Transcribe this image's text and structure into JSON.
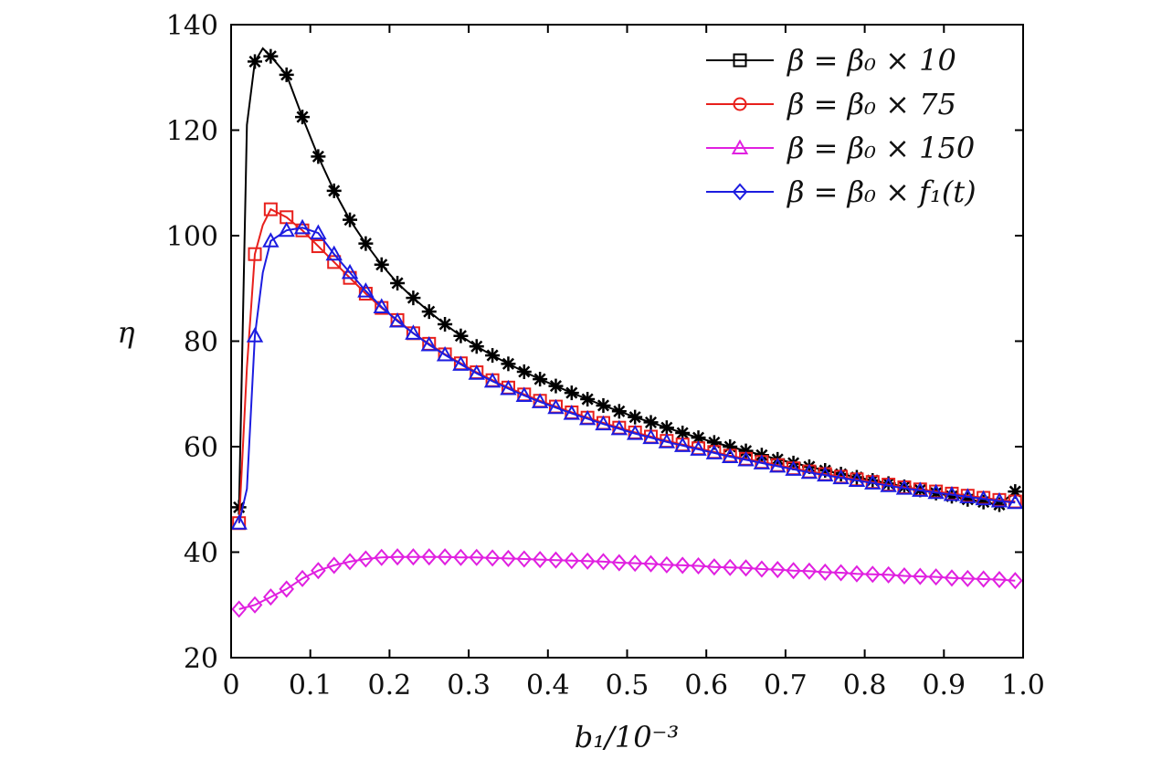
{
  "chart_data": {
    "type": "line",
    "title": "",
    "xlabel": "b₁/10⁻³",
    "ylabel": "η",
    "xlim": [
      0,
      1.0
    ],
    "ylim": [
      20,
      140
    ],
    "xticks": [
      "0",
      "0.1",
      "0.2",
      "0.3",
      "0.4",
      "0.5",
      "0.6",
      "0.7",
      "0.8",
      "0.9",
      "1.0"
    ],
    "yticks": [
      "20",
      "40",
      "60",
      "80",
      "100",
      "120",
      "140"
    ],
    "grid": false,
    "legend_position": "top-right",
    "legend": [
      {
        "label": "β = β₀ × 10",
        "color": "#000000",
        "marker": "square"
      },
      {
        "label": "β = β₀ × 75",
        "color": "#e8201c",
        "marker": "circle"
      },
      {
        "label": "β = β₀ × 150",
        "color": "#e020e0",
        "marker": "triangle"
      },
      {
        "label": "β = β₀ × f₁(t)",
        "color": "#1c1ce0",
        "marker": "diamond"
      }
    ],
    "series": [
      {
        "name": "black-star-series",
        "color": "#000000",
        "marker": "asterisk",
        "x": [
          0.01,
          0.02,
          0.03,
          0.04,
          0.05,
          0.07,
          0.09,
          0.11,
          0.13,
          0.15,
          0.17,
          0.19,
          0.21,
          0.23,
          0.25,
          0.27,
          0.29,
          0.31,
          0.33,
          0.35,
          0.37,
          0.39,
          0.41,
          0.43,
          0.45,
          0.47,
          0.49,
          0.51,
          0.53,
          0.55,
          0.57,
          0.59,
          0.61,
          0.63,
          0.65,
          0.67,
          0.69,
          0.71,
          0.73,
          0.75,
          0.77,
          0.79,
          0.81,
          0.83,
          0.85,
          0.87,
          0.89,
          0.91,
          0.93,
          0.95,
          0.97,
          0.99
        ],
        "y": [
          48.5,
          121,
          133,
          135.5,
          134,
          130.5,
          122.5,
          115,
          108.5,
          103,
          98.5,
          94.5,
          91,
          88.2,
          85.6,
          83.2,
          81,
          79,
          77.3,
          75.7,
          74.2,
          72.8,
          71.5,
          70.2,
          69,
          67.8,
          66.7,
          65.6,
          64.6,
          63.6,
          62.6,
          61.7,
          60.8,
          60,
          59.2,
          58.4,
          57.6,
          56.9,
          56.2,
          55.5,
          54.8,
          54.2,
          53.6,
          53,
          52.4,
          51.8,
          51.2,
          50.6,
          50,
          49.5,
          49,
          51.5
        ],
        "marker_x": [
          0.01,
          0.03,
          0.05,
          0.07,
          0.09,
          0.11,
          0.13,
          0.15,
          0.17,
          0.19,
          0.21,
          0.23,
          0.25,
          0.27,
          0.29,
          0.31,
          0.33,
          0.35,
          0.37,
          0.39,
          0.41,
          0.43,
          0.45,
          0.47,
          0.49,
          0.51,
          0.53,
          0.55,
          0.57,
          0.59,
          0.61,
          0.63,
          0.65,
          0.67,
          0.69,
          0.71,
          0.73,
          0.75,
          0.77,
          0.79,
          0.81,
          0.83,
          0.85,
          0.87,
          0.89,
          0.91,
          0.93,
          0.95,
          0.97,
          0.99
        ]
      },
      {
        "name": "red-square-series",
        "color": "#e8201c",
        "marker": "square",
        "x": [
          0.01,
          0.02,
          0.03,
          0.04,
          0.05,
          0.07,
          0.09,
          0.11,
          0.13,
          0.15,
          0.17,
          0.19,
          0.21,
          0.23,
          0.25,
          0.27,
          0.29,
          0.31,
          0.33,
          0.35,
          0.37,
          0.39,
          0.41,
          0.43,
          0.45,
          0.47,
          0.49,
          0.51,
          0.53,
          0.55,
          0.57,
          0.59,
          0.61,
          0.63,
          0.65,
          0.67,
          0.69,
          0.71,
          0.73,
          0.75,
          0.77,
          0.79,
          0.81,
          0.83,
          0.85,
          0.87,
          0.89,
          0.91,
          0.93,
          0.95,
          0.97,
          0.99
        ],
        "y": [
          45.5,
          75,
          96.5,
          102,
          105,
          103.5,
          101,
          98,
          95,
          92,
          89,
          86.3,
          84,
          81.5,
          79.5,
          77.5,
          75.8,
          74.1,
          72.6,
          71.2,
          69.9,
          68.7,
          67.6,
          66.5,
          65.5,
          64.5,
          63.6,
          62.7,
          61.9,
          61.1,
          60.4,
          59.7,
          59,
          58.3,
          57.7,
          57.1,
          56.5,
          55.9,
          55.3,
          54.8,
          54.3,
          53.8,
          53.3,
          52.8,
          52.3,
          51.9,
          51.5,
          51.1,
          50.7,
          50.3,
          49.9,
          49.6
        ],
        "marker_x": [
          0.01,
          0.03,
          0.05,
          0.07,
          0.09,
          0.11,
          0.13,
          0.15,
          0.17,
          0.19,
          0.21,
          0.23,
          0.25,
          0.27,
          0.29,
          0.31,
          0.33,
          0.35,
          0.37,
          0.39,
          0.41,
          0.43,
          0.45,
          0.47,
          0.49,
          0.51,
          0.53,
          0.55,
          0.57,
          0.59,
          0.61,
          0.63,
          0.65,
          0.67,
          0.69,
          0.71,
          0.73,
          0.75,
          0.77,
          0.79,
          0.81,
          0.83,
          0.85,
          0.87,
          0.89,
          0.91,
          0.93,
          0.95,
          0.97,
          0.99
        ]
      },
      {
        "name": "magenta-diamond-series",
        "color": "#e020e0",
        "marker": "diamond",
        "x": [
          0.01,
          0.03,
          0.05,
          0.07,
          0.09,
          0.11,
          0.13,
          0.15,
          0.17,
          0.19,
          0.21,
          0.23,
          0.25,
          0.27,
          0.29,
          0.31,
          0.33,
          0.35,
          0.37,
          0.39,
          0.41,
          0.43,
          0.45,
          0.47,
          0.49,
          0.51,
          0.53,
          0.55,
          0.57,
          0.59,
          0.61,
          0.63,
          0.65,
          0.67,
          0.69,
          0.71,
          0.73,
          0.75,
          0.77,
          0.79,
          0.81,
          0.83,
          0.85,
          0.87,
          0.89,
          0.91,
          0.93,
          0.95,
          0.97,
          0.99
        ],
        "y": [
          29.2,
          30,
          31.5,
          33,
          35,
          36.5,
          37.5,
          38.2,
          38.7,
          39,
          39.1,
          39.1,
          39.1,
          39.1,
          39,
          39,
          38.9,
          38.8,
          38.7,
          38.6,
          38.5,
          38.4,
          38.3,
          38.2,
          38,
          37.9,
          37.8,
          37.6,
          37.5,
          37.4,
          37.2,
          37.1,
          37,
          36.8,
          36.7,
          36.5,
          36.4,
          36.2,
          36.1,
          35.9,
          35.8,
          35.7,
          35.5,
          35.4,
          35.3,
          35.1,
          35,
          34.9,
          34.8,
          34.6
        ],
        "marker_x": [
          0.01,
          0.03,
          0.05,
          0.07,
          0.09,
          0.11,
          0.13,
          0.15,
          0.17,
          0.19,
          0.21,
          0.23,
          0.25,
          0.27,
          0.29,
          0.31,
          0.33,
          0.35,
          0.37,
          0.39,
          0.41,
          0.43,
          0.45,
          0.47,
          0.49,
          0.51,
          0.53,
          0.55,
          0.57,
          0.59,
          0.61,
          0.63,
          0.65,
          0.67,
          0.69,
          0.71,
          0.73,
          0.75,
          0.77,
          0.79,
          0.81,
          0.83,
          0.85,
          0.87,
          0.89,
          0.91,
          0.93,
          0.95,
          0.97,
          0.99
        ]
      },
      {
        "name": "blue-triangle-series",
        "color": "#1c1ce0",
        "marker": "triangle",
        "x": [
          0.01,
          0.02,
          0.03,
          0.04,
          0.05,
          0.07,
          0.09,
          0.11,
          0.13,
          0.15,
          0.17,
          0.19,
          0.21,
          0.23,
          0.25,
          0.27,
          0.29,
          0.31,
          0.33,
          0.35,
          0.37,
          0.39,
          0.41,
          0.43,
          0.45,
          0.47,
          0.49,
          0.51,
          0.53,
          0.55,
          0.57,
          0.59,
          0.61,
          0.63,
          0.65,
          0.67,
          0.69,
          0.71,
          0.73,
          0.75,
          0.77,
          0.79,
          0.81,
          0.83,
          0.85,
          0.87,
          0.89,
          0.91,
          0.93,
          0.95,
          0.97,
          0.99
        ],
        "y": [
          45.5,
          52,
          81,
          93,
          99,
          101,
          101.5,
          100.5,
          96.5,
          93,
          89.5,
          86.5,
          83.8,
          81.5,
          79.3,
          77.4,
          75.6,
          73.9,
          72.4,
          71,
          69.7,
          68.5,
          67.4,
          66.3,
          65.3,
          64.3,
          63.4,
          62.5,
          61.7,
          60.9,
          60.2,
          59.5,
          58.8,
          58.1,
          57.5,
          56.9,
          56.3,
          55.7,
          55.1,
          54.6,
          54.1,
          53.6,
          53.1,
          52.6,
          52.1,
          51.7,
          51.3,
          50.9,
          50.5,
          50.1,
          49.7,
          49.4
        ],
        "marker_x": [
          0.01,
          0.03,
          0.05,
          0.07,
          0.09,
          0.11,
          0.13,
          0.15,
          0.17,
          0.19,
          0.21,
          0.23,
          0.25,
          0.27,
          0.29,
          0.31,
          0.33,
          0.35,
          0.37,
          0.39,
          0.41,
          0.43,
          0.45,
          0.47,
          0.49,
          0.51,
          0.53,
          0.55,
          0.57,
          0.59,
          0.61,
          0.63,
          0.65,
          0.67,
          0.69,
          0.71,
          0.73,
          0.75,
          0.77,
          0.79,
          0.81,
          0.83,
          0.85,
          0.87,
          0.89,
          0.91,
          0.93,
          0.95,
          0.97,
          0.99
        ]
      }
    ]
  }
}
